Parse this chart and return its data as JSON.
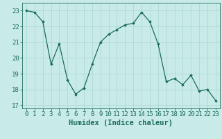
{
  "x": [
    0,
    1,
    2,
    3,
    4,
    5,
    6,
    7,
    8,
    9,
    10,
    11,
    12,
    13,
    14,
    15,
    16,
    17,
    18,
    19,
    20,
    21,
    22,
    23
  ],
  "y": [
    23.0,
    22.9,
    22.3,
    19.6,
    20.9,
    18.6,
    17.7,
    18.1,
    19.6,
    21.0,
    21.5,
    21.8,
    22.1,
    22.2,
    22.9,
    22.3,
    20.9,
    18.5,
    18.7,
    18.3,
    18.9,
    17.9,
    18.0,
    17.3
  ],
  "line_color": "#1a6b5a",
  "marker": "D",
  "marker_size": 2.0,
  "bg_color": "#c8ebe8",
  "grid_color": "#afd8d3",
  "xlabel": "Humidex (Indice chaleur)",
  "xlim": [
    -0.5,
    23.5
  ],
  "ylim": [
    16.8,
    23.5
  ],
  "yticks": [
    17,
    18,
    19,
    20,
    21,
    22,
    23
  ],
  "xticks": [
    0,
    1,
    2,
    3,
    4,
    5,
    6,
    7,
    8,
    9,
    10,
    11,
    12,
    13,
    14,
    15,
    16,
    17,
    18,
    19,
    20,
    21,
    22,
    23
  ],
  "tick_color": "#1a6b5a",
  "label_color": "#1a6b5a",
  "font_size": 6.5,
  "xlabel_fontsize": 7.5
}
